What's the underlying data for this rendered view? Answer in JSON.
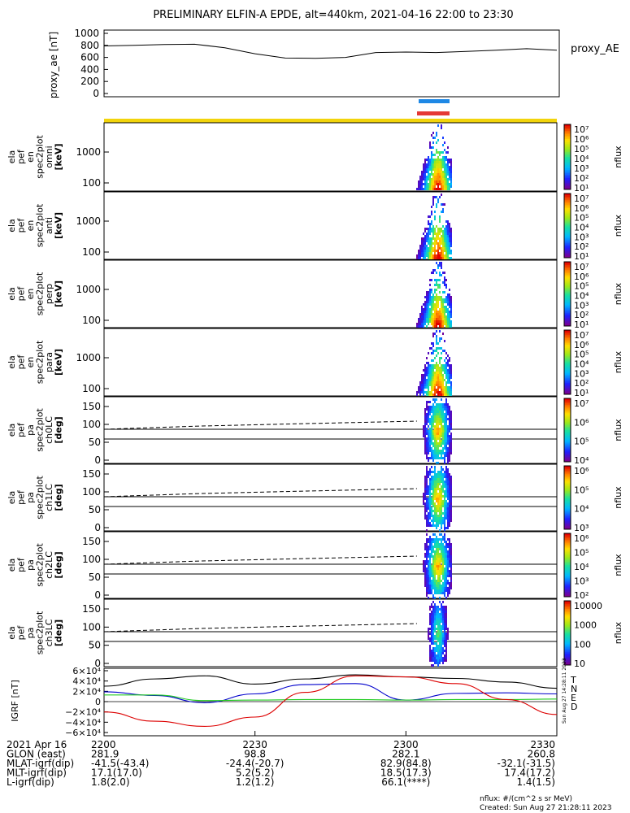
{
  "title": "PRELIMINARY ELFIN-A EPDE, alt=440km, 2021-04-16 22:00 to 23:30",
  "colors": {
    "blue_bar": "#1e88e5",
    "red_bar": "#e53935",
    "yellow_bar": "#f2d40b",
    "ae_line": "#000000"
  },
  "chart_data": [
    {
      "name": "proxy_AE",
      "type": "line",
      "ylabel": "proxy_ae [nT]",
      "legend": "proxy_AE",
      "ylim": [
        0,
        1000
      ],
      "yticks": [
        "1000",
        "800",
        "600",
        "400",
        "200",
        "0"
      ],
      "x_minutes": [
        0,
        6,
        12,
        18,
        24,
        30,
        36,
        42,
        48,
        54,
        60,
        66,
        72,
        78,
        84,
        90
      ],
      "values": [
        790,
        800,
        815,
        820,
        760,
        660,
        590,
        585,
        600,
        680,
        690,
        680,
        700,
        720,
        745,
        720
      ],
      "series": [
        {
          "values": [
            790,
            800,
            815,
            820,
            760,
            660,
            590,
            585,
            600,
            680,
            690,
            680,
            700,
            720,
            745,
            720
          ]
        }
      ]
    },
    {
      "name": "energy spectrograms",
      "type": "heatmap",
      "panels": [
        {
          "label": [
            "ela",
            "pef",
            "en",
            "spec2plot",
            "omni",
            "[keV]"
          ],
          "yticks": [
            "1000",
            "100"
          ],
          "cbar_ticks": [
            "10⁷",
            "10⁶",
            "10⁵",
            "10⁴",
            "10³",
            "10²",
            "10¹"
          ],
          "cbar_label": "nflux"
        },
        {
          "label": [
            "ela",
            "pef",
            "en",
            "spec2plot",
            "anti",
            "[keV]"
          ],
          "yticks": [
            "1000",
            "100"
          ],
          "cbar_ticks": [
            "10⁷",
            "10⁶",
            "10⁵",
            "10⁴",
            "10³",
            "10²",
            "10¹"
          ],
          "cbar_label": "nflux"
        },
        {
          "label": [
            "ela",
            "pef",
            "en",
            "spec2plot",
            "perp",
            "[keV]"
          ],
          "yticks": [
            "1000",
            "100"
          ],
          "cbar_ticks": [
            "10⁷",
            "10⁶",
            "10⁵",
            "10⁴",
            "10³",
            "10²",
            "10¹"
          ],
          "cbar_label": "nflux"
        },
        {
          "label": [
            "ela",
            "pef",
            "en",
            "spec2plot",
            "para",
            "[keV]"
          ],
          "yticks": [
            "1000",
            "100"
          ],
          "cbar_ticks": [
            "10⁷",
            "10⁶",
            "10⁵",
            "10⁴",
            "10³",
            "10²",
            "10¹"
          ],
          "cbar_label": "nflux"
        }
      ]
    },
    {
      "name": "pitch angle spectrograms",
      "type": "heatmap",
      "panels": [
        {
          "label": [
            "ela",
            "pef",
            "pa",
            "spec2plot",
            "ch0LC",
            "[deg]"
          ],
          "yticks": [
            "150",
            "100",
            "50",
            "0"
          ],
          "cbar_ticks": [
            "10⁷",
            "10⁶",
            "10⁵",
            "10⁴"
          ],
          "cbar_label": "nflux"
        },
        {
          "label": [
            "ela",
            "pef",
            "pa",
            "spec2plot",
            "ch1LC",
            "[deg]"
          ],
          "yticks": [
            "150",
            "100",
            "50",
            "0"
          ],
          "cbar_ticks": [
            "10⁶",
            "10⁵",
            "10⁴",
            "10³"
          ],
          "cbar_label": "nflux"
        },
        {
          "label": [
            "ela",
            "pef",
            "pa",
            "spec2plot",
            "ch2LC",
            "[deg]"
          ],
          "yticks": [
            "150",
            "100",
            "50",
            "0"
          ],
          "cbar_ticks": [
            "10⁶",
            "10⁵",
            "10⁴",
            "10³",
            "10²"
          ],
          "cbar_label": "nflux"
        },
        {
          "label": [
            "ela",
            "pef",
            "pa",
            "spec2plot",
            "ch3LC",
            "[deg]"
          ],
          "yticks": [
            "150",
            "100",
            "50",
            "0"
          ],
          "cbar_ticks": [
            "10000",
            "1000",
            "100",
            "10"
          ],
          "cbar_label": "nflux"
        }
      ]
    },
    {
      "name": "IGRF field",
      "type": "line",
      "ylabel": "IGRF [nT]",
      "ylim": [
        -60000,
        60000
      ],
      "yticks": [
        "6×10⁴",
        "4×10⁴",
        "2×10⁴",
        "0",
        "−2×10⁴",
        "−4×10⁴",
        "−6×10⁴"
      ],
      "x_minutes": [
        0,
        10,
        20,
        30,
        40,
        50,
        60,
        70,
        80,
        90
      ],
      "series": [
        {
          "name": "T",
          "color": "#000000",
          "values": [
            30000,
            44000,
            50000,
            34000,
            44000,
            52000,
            48000,
            45000,
            38000,
            26000
          ]
        },
        {
          "name": "N",
          "color": "#0000cc",
          "values": [
            19000,
            12000,
            -2000,
            15000,
            33000,
            35000,
            3000,
            16000,
            17000,
            15000
          ]
        },
        {
          "name": "E",
          "color": "#22cc22",
          "values": [
            13000,
            13000,
            2000,
            3000,
            4000,
            4000,
            3000,
            4000,
            4000,
            5000
          ]
        },
        {
          "name": "D",
          "color": "#dd0000",
          "values": [
            -20000,
            -38000,
            -48000,
            -30000,
            18000,
            50000,
            48000,
            35000,
            4000,
            -25000
          ]
        }
      ]
    }
  ],
  "footer": {
    "rows": [
      {
        "label": "2021 Apr 16",
        "values": [
          "2200",
          "2230",
          "2300",
          "2330"
        ]
      },
      {
        "label": "GLON (east)",
        "values": [
          "281.9",
          "98.8",
          "282.1",
          "260.8"
        ]
      },
      {
        "label": "MLAT-igrf(dip)",
        "values": [
          "-41.5(-43.4)",
          "-24.4(-20.7)",
          "82.9(84.8)",
          "-32.1(-31.5)"
        ]
      },
      {
        "label": "MLT-igrf(dip)",
        "values": [
          "17.1(17.0)",
          "5.2(5.2)",
          "18.5(17.3)",
          "17.4(17.2)"
        ]
      },
      {
        "label": "L-igrf(dip)",
        "values": [
          "1.8(2.0)",
          "1.2(1.2)",
          "66.1(****)",
          "1.4(1.5)"
        ]
      }
    ],
    "units": "nflux: #/(cm^2 s sr MeV)",
    "created": "Created: Sun Aug 27 21:28:11 2023",
    "side_stamp": "Sun Aug 27 14:28:11 2023"
  }
}
